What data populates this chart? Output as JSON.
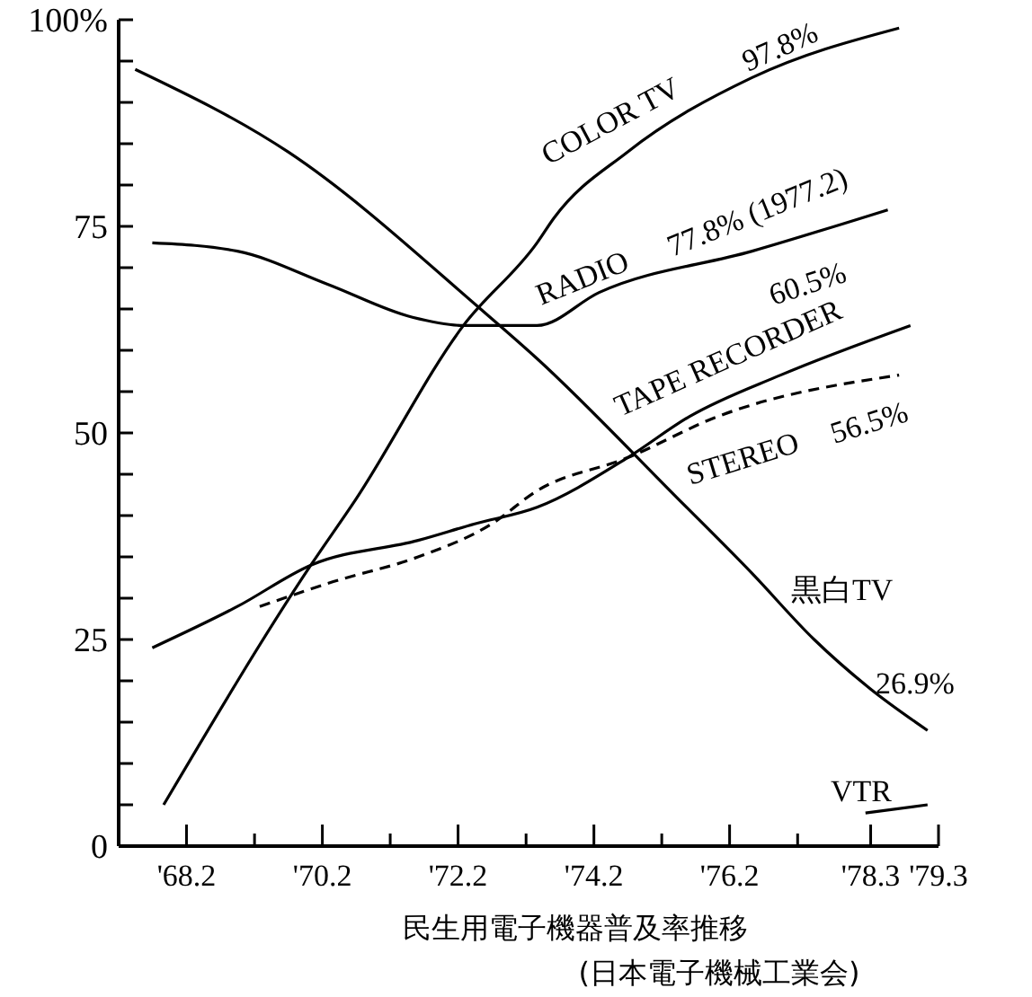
{
  "chart_data": {
    "type": "line",
    "title": "民生用電子機器普及率推移",
    "subtitle": "(日本電子機械工業会)",
    "xlim": [
      "1967-02",
      "1979-03"
    ],
    "ylim": [
      0,
      100
    ],
    "xticks": [
      {
        "value": "1968-02",
        "label": "'68.2"
      },
      {
        "value": "1969-02",
        "label": null
      },
      {
        "value": "1970-02",
        "label": "'70.2"
      },
      {
        "value": "1971-02",
        "label": null
      },
      {
        "value": "1972-02",
        "label": "'72.2"
      },
      {
        "value": "1973-02",
        "label": null
      },
      {
        "value": "1974-02",
        "label": "'74.2"
      },
      {
        "value": "1975-02",
        "label": null
      },
      {
        "value": "1976-02",
        "label": "'76.2"
      },
      {
        "value": "1977-02",
        "label": null
      },
      {
        "value": "1978-03",
        "label": "'78.3"
      },
      {
        "value": "1979-03",
        "label": "'79.3"
      }
    ],
    "yticks": [
      0,
      {
        "value": 5,
        "label": null
      },
      {
        "value": 10,
        "label": null
      },
      {
        "value": 15,
        "label": null
      },
      {
        "value": 20,
        "label": null
      },
      25,
      {
        "value": 30,
        "label": null
      },
      {
        "value": 35,
        "label": null
      },
      {
        "value": 40,
        "label": null
      },
      {
        "value": 45,
        "label": null
      },
      50,
      {
        "value": 55,
        "label": null
      },
      {
        "value": 60,
        "label": null
      },
      {
        "value": 65,
        "label": null
      },
      {
        "value": 70,
        "label": null
      },
      75,
      {
        "value": 80,
        "label": null
      },
      {
        "value": 85,
        "label": null
      },
      {
        "value": 90,
        "label": null
      },
      {
        "value": 95,
        "label": null
      },
      {
        "value": 100,
        "label": "100%"
      }
    ],
    "grid": false,
    "legend": false,
    "marker": "none",
    "series": [
      {
        "name": "COLOR TV",
        "color": "#000000",
        "x": [
          "1967-10",
          "1969-12",
          "1970-08",
          "1972-03",
          "1973-04",
          "1973-07",
          "1974-08",
          "1976-06",
          "1978-08"
        ],
        "values": [
          5,
          34,
          42,
          63,
          73,
          76,
          84,
          93,
          99
        ]
      },
      {
        "name": "RADIO",
        "color": "#000000",
        "x": [
          "1967-08",
          "1968-11",
          "1970-03",
          "1971-06",
          "1972-03",
          "1973-04",
          "1974-03",
          "1976-06",
          "1978-06"
        ],
        "values": [
          73,
          72,
          68,
          64,
          63,
          63,
          67,
          72,
          77
        ]
      },
      {
        "name": "TAPE RECORDER",
        "color": "#000000",
        "x": [
          "1967-08",
          "1968-11",
          "1969-12",
          "1971-07",
          "1972-05",
          "1973-04",
          "1974-08",
          "1975-07",
          "1976-11",
          "1978-10"
        ],
        "values": [
          24,
          29,
          34,
          37,
          39,
          41,
          47,
          52,
          57,
          63
        ]
      },
      {
        "name": "STEREO",
        "color": "#000000",
        "line_style": "dashed",
        "x": [
          "1969-03",
          "1970-04",
          "1971-07",
          "1972-08",
          "1973-04",
          "1974-08",
          "1975-12",
          "1978-08"
        ],
        "values": [
          29,
          32,
          35,
          39,
          43,
          47,
          52,
          57
        ]
      },
      {
        "name": "黒白TV",
        "color": "#000000",
        "x": [
          "1967-05",
          "1969-08",
          "1972-06",
          "1973-04",
          "1975-05",
          "1976-06",
          "1977-05",
          "1978-03",
          "1979-01"
        ],
        "values": [
          94,
          84,
          65,
          59,
          42,
          33,
          25,
          19,
          14
        ]
      },
      {
        "name": "VTR",
        "color": "#000000",
        "x": [
          "1978-02",
          "1979-01"
        ],
        "values": [
          4,
          5
        ]
      }
    ],
    "annotations": [
      "97.8%",
      "77.8% (1977.2)",
      "60.5%",
      "56.5%",
      "26.9%"
    ]
  }
}
